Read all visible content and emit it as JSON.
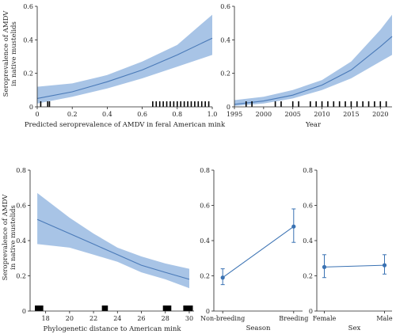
{
  "ylabel_lines": [
    "Seroprevalence of AMDV",
    "in native mustelids"
  ],
  "colors": {
    "band": "#a8c4e6",
    "line": "#4a7ab8",
    "point": "#3a72b3",
    "axis": "#222222",
    "rug": "#000000"
  },
  "chart_data": [
    {
      "id": "panel-a",
      "type": "line",
      "xlabel": "Predicted seroprevalence of AMDV in feral American mink",
      "ylabel": "Seroprevalence of AMDV in native mustelids",
      "xlim": [
        0,
        1
      ],
      "ylim": [
        0,
        0.6
      ],
      "xticks": [
        0,
        0.2,
        0.4,
        0.6,
        0.8,
        1.0
      ],
      "xtick_labels": [
        "0",
        "0.2",
        "0.4",
        "0.6",
        "0.8",
        "1.0"
      ],
      "yticks": [
        0,
        0.2,
        0.4,
        0.6
      ],
      "ytick_labels": [
        "0",
        "0.2",
        "0.4",
        "0.6"
      ],
      "x": [
        0.0,
        0.2,
        0.4,
        0.6,
        0.8,
        1.0
      ],
      "y": [
        0.05,
        0.09,
        0.15,
        0.22,
        0.31,
        0.41
      ],
      "lower": [
        0.02,
        0.06,
        0.11,
        0.17,
        0.24,
        0.31
      ],
      "upper": [
        0.12,
        0.14,
        0.19,
        0.27,
        0.37,
        0.55
      ],
      "rug": [
        0.02,
        0.06,
        0.07,
        0.66,
        0.68,
        0.7,
        0.72,
        0.74,
        0.76,
        0.78,
        0.8,
        0.82,
        0.84,
        0.86,
        0.88,
        0.9,
        0.92,
        0.94,
        0.96,
        0.98
      ]
    },
    {
      "id": "panel-b",
      "type": "line",
      "xlabel": "Year",
      "ylabel": "",
      "xlim": [
        1995,
        2022
      ],
      "ylim": [
        0,
        0.6
      ],
      "xticks": [
        1995,
        2000,
        2005,
        2010,
        2015,
        2020
      ],
      "xtick_labels": [
        "1995",
        "2000",
        "2005",
        "2010",
        "2015",
        "2020"
      ],
      "yticks": [
        0,
        0.2,
        0.4,
        0.6
      ],
      "ytick_labels": [
        "0",
        "0.2",
        "0.4",
        "0.6"
      ],
      "x": [
        1995,
        2000,
        2005,
        2010,
        2015,
        2020,
        2022
      ],
      "y": [
        0.015,
        0.035,
        0.07,
        0.13,
        0.22,
        0.36,
        0.42
      ],
      "lower": [
        0.005,
        0.02,
        0.05,
        0.1,
        0.17,
        0.27,
        0.31
      ],
      "upper": [
        0.04,
        0.06,
        0.1,
        0.16,
        0.27,
        0.46,
        0.55
      ],
      "rug": [
        1997,
        1998,
        2002,
        2003,
        2005,
        2006,
        2008,
        2009,
        2010,
        2011,
        2012,
        2013,
        2014,
        2015,
        2016,
        2017,
        2018,
        2019,
        2020,
        2021
      ]
    },
    {
      "id": "panel-c",
      "type": "line",
      "xlabel": "Phylogenetic distance to American mink",
      "ylabel": "Seroprevalence of AMDV in native mustelids",
      "xlim": [
        16.7,
        30.4
      ],
      "ylim": [
        0,
        0.8
      ],
      "xticks": [
        18,
        20,
        22,
        24,
        26,
        28,
        30
      ],
      "xtick_labels": [
        "18",
        "20",
        "22",
        "24",
        "26",
        "28",
        "30"
      ],
      "yticks": [
        0,
        0.2,
        0.4,
        0.6,
        0.8
      ],
      "ytick_labels": [
        "0",
        "0.2",
        "0.4",
        "0.6",
        "0.8"
      ],
      "x": [
        17.3,
        20,
        22,
        24,
        26,
        28,
        30
      ],
      "y": [
        0.52,
        0.44,
        0.38,
        0.32,
        0.26,
        0.22,
        0.18
      ],
      "lower": [
        0.38,
        0.36,
        0.32,
        0.28,
        0.22,
        0.18,
        0.13
      ],
      "upper": [
        0.67,
        0.53,
        0.44,
        0.36,
        0.31,
        0.27,
        0.24
      ],
      "rug_blocks": [
        [
          17.1,
          17.8
        ],
        [
          22.7,
          23.2
        ],
        [
          27.8,
          28.5
        ],
        [
          29.5,
          30.3
        ]
      ]
    },
    {
      "id": "panel-d",
      "type": "scatter",
      "xlabel": "Season",
      "ylabel": "",
      "ylim": [
        0,
        0.8
      ],
      "categories": [
        "Non-breeding",
        "Breeding"
      ],
      "yticks": [
        0,
        0.2,
        0.4,
        0.6,
        0.8
      ],
      "ytick_labels": [
        "0",
        "0.2",
        "0.4",
        "0.6",
        "0.8"
      ],
      "values": [
        0.19,
        0.48
      ],
      "lower": [
        0.15,
        0.39
      ],
      "upper": [
        0.24,
        0.58
      ]
    },
    {
      "id": "panel-e",
      "type": "scatter",
      "xlabel": "Sex",
      "ylabel": "",
      "ylim": [
        0,
        0.8
      ],
      "categories": [
        "Female",
        "Male"
      ],
      "yticks": [
        0,
        0.2,
        0.4,
        0.6,
        0.8
      ],
      "ytick_labels": [
        "0",
        "0.2",
        "0.4",
        "0.6",
        "0.8"
      ],
      "values": [
        0.25,
        0.26
      ],
      "lower": [
        0.19,
        0.21
      ],
      "upper": [
        0.32,
        0.32
      ]
    }
  ]
}
